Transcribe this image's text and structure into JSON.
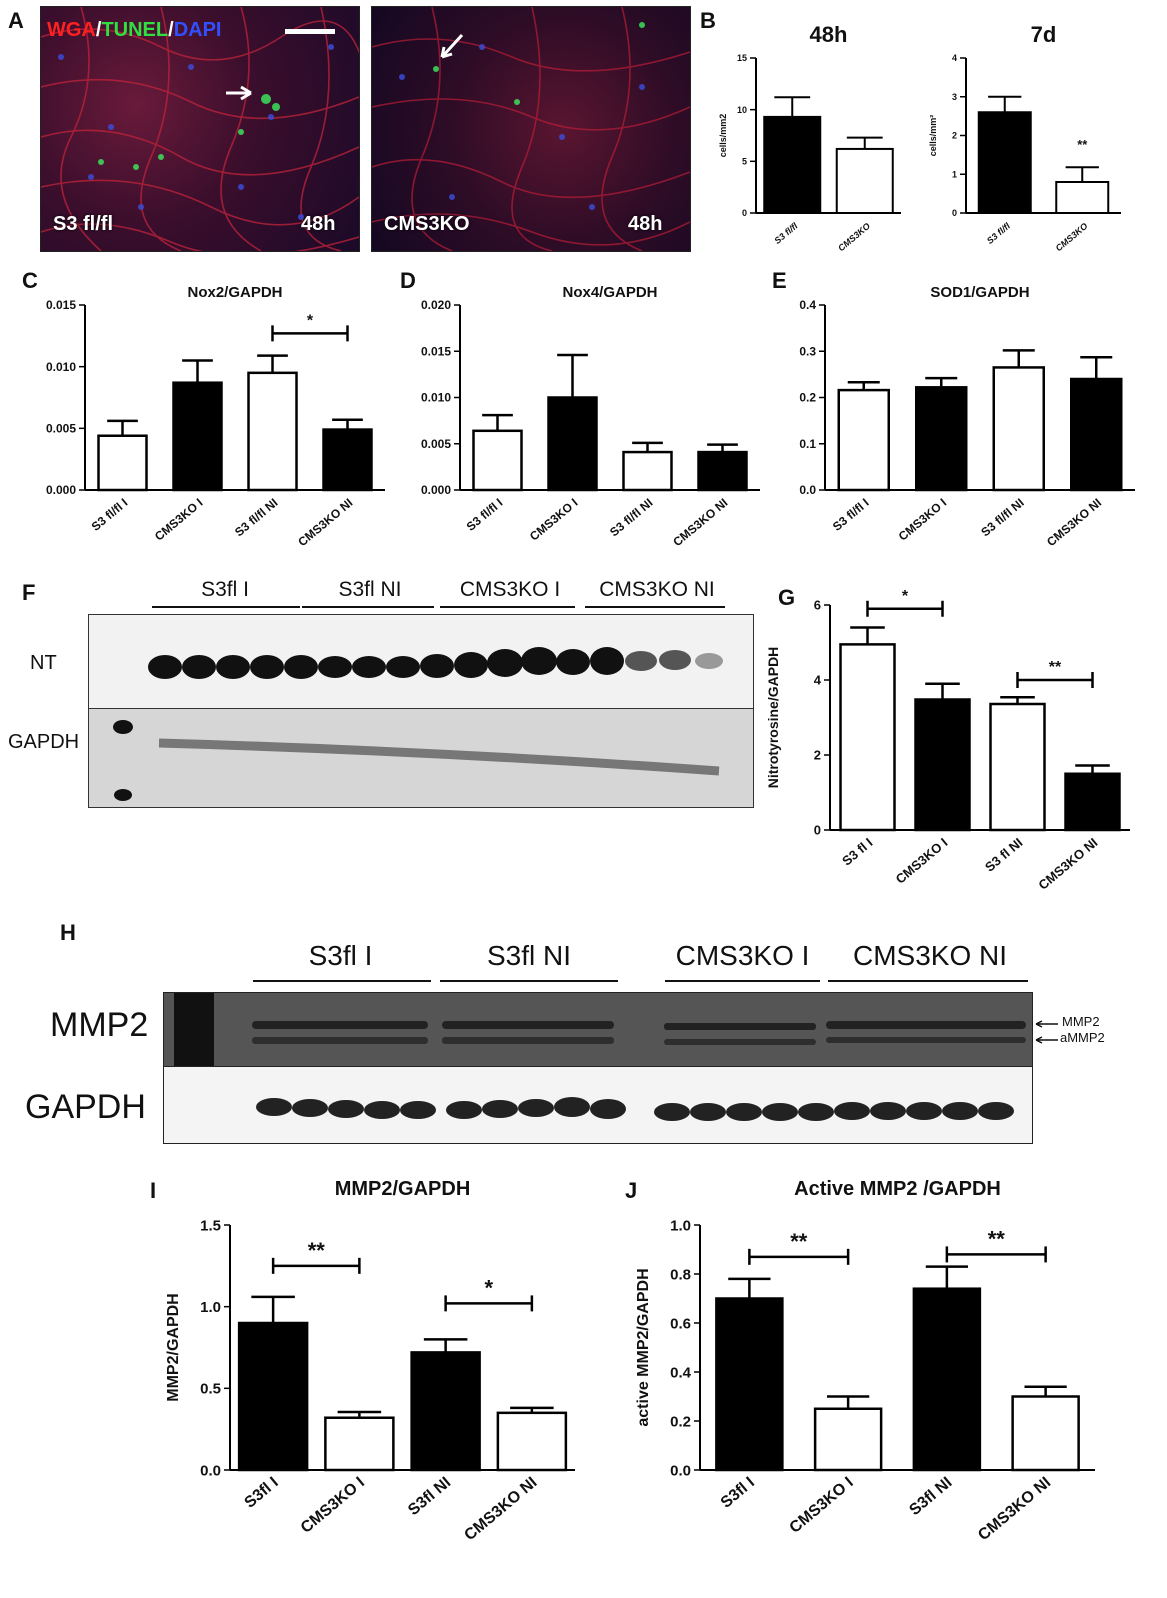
{
  "panels": {
    "a": {
      "letter": "A"
    },
    "b": {
      "letter": "B"
    },
    "c": {
      "letter": "C"
    },
    "d": {
      "letter": "D"
    },
    "e": {
      "letter": "E"
    },
    "f": {
      "letter": "F"
    },
    "g": {
      "letter": "G"
    },
    "h": {
      "letter": "H"
    },
    "i": {
      "letter": "I"
    },
    "j": {
      "letter": "J"
    }
  },
  "micrographs": {
    "stain_wga": "WGA",
    "stain_sep1": "/",
    "stain_tunel": "TUNEL",
    "stain_sep2": "/",
    "stain_dapi": "DAPI",
    "left_genotype": "S3 fl/fl",
    "left_time": "48h",
    "right_genotype": "CMS3KO",
    "right_time": "48h"
  },
  "blot_f": {
    "groups": [
      "S3fl I",
      "S3fl NI",
      "CMS3KO I",
      "CMS3KO NI"
    ],
    "rows": [
      "NT",
      "GAPDH"
    ]
  },
  "blot_h": {
    "groups": [
      "S3fl I",
      "S3fl NI",
      "CMS3KO I",
      "CMS3KO NI"
    ],
    "rows": [
      "MMP2",
      "GAPDH"
    ],
    "band_labels": [
      "MMP2",
      "aMMP2"
    ]
  },
  "colors": {
    "filled_bar": "#000000",
    "open_bar": "#ffffff",
    "stroke": "#000000"
  },
  "chart_data": [
    {
      "id": "b1",
      "type": "bar",
      "title": "48h",
      "ylabel": "cells/mm2",
      "categories": [
        "S3 fl/fl",
        "CMS3KO"
      ],
      "values": [
        9.3,
        6.2
      ],
      "errors": [
        1.9,
        1.1
      ],
      "fills": [
        "filled",
        "open"
      ],
      "ylim": [
        0,
        15
      ],
      "yticks": [
        "0",
        "5",
        "10",
        "15"
      ],
      "significance": [
        {
          "from": 1,
          "to": 1,
          "label": "",
          "y": 0
        }
      ]
    },
    {
      "id": "b2",
      "type": "bar",
      "title": "7d",
      "ylabel": "cells/mm²",
      "categories": [
        "S3 fl/fl",
        "CMS3KO"
      ],
      "values": [
        2.6,
        0.8
      ],
      "errors": [
        0.4,
        0.38
      ],
      "fills": [
        "filled",
        "open"
      ],
      "ylim": [
        0,
        4
      ],
      "yticks": [
        "0",
        "1",
        "2",
        "3",
        "4"
      ],
      "significance": [
        {
          "from": 1,
          "to": 1,
          "label": "**",
          "y": 1.45
        }
      ]
    },
    {
      "id": "c",
      "type": "bar",
      "title": "Nox2/GAPDH",
      "ylabel": "",
      "categories": [
        "S3 fl/fl I",
        "CMS3KO I",
        "S3 fl/fl NI",
        "CMS3KO NI"
      ],
      "values": [
        0.0044,
        0.0087,
        0.0095,
        0.0049
      ],
      "errors": [
        0.0012,
        0.0018,
        0.0014,
        0.0008
      ],
      "fills": [
        "open",
        "filled",
        "open",
        "filled"
      ],
      "ylim": [
        0,
        0.015
      ],
      "yticks": [
        "0.000",
        "0.005",
        "0.010",
        "0.015"
      ],
      "significance": [
        {
          "from": 2,
          "to": 3,
          "label": "*",
          "y": 0.0127
        }
      ]
    },
    {
      "id": "d",
      "type": "bar",
      "title": "Nox4/GAPDH",
      "ylabel": "",
      "categories": [
        "S3 fl/fl I",
        "CMS3KO I",
        "S3 fl/fl NI",
        "CMS3KO NI"
      ],
      "values": [
        0.0064,
        0.01,
        0.0041,
        0.0041
      ],
      "errors": [
        0.0017,
        0.0046,
        0.001,
        0.0008
      ],
      "fills": [
        "open",
        "filled",
        "open",
        "filled"
      ],
      "ylim": [
        0,
        0.02
      ],
      "yticks": [
        "0.000",
        "0.005",
        "0.010",
        "0.015",
        "0.020"
      ],
      "significance": []
    },
    {
      "id": "e",
      "type": "bar",
      "title": "SOD1/GAPDH",
      "ylabel": "",
      "categories": [
        "S3 fl/fl I",
        "CMS3KO I",
        "S3 fl/fl NI",
        "CMS3KO NI"
      ],
      "values": [
        0.216,
        0.222,
        0.265,
        0.24
      ],
      "errors": [
        0.017,
        0.02,
        0.037,
        0.047
      ],
      "fills": [
        "open",
        "filled",
        "open",
        "filled"
      ],
      "ylim": [
        0,
        0.4
      ],
      "yticks": [
        "0.0",
        "0.1",
        "0.2",
        "0.3",
        "0.4"
      ],
      "significance": []
    },
    {
      "id": "g",
      "type": "bar",
      "title": "",
      "ylabel": "Nitrotyrosine/GAPDH",
      "categories": [
        "S3 fl I",
        "CMS3KO I",
        "S3 fl NI",
        "CMS3KO NI"
      ],
      "values": [
        4.95,
        3.48,
        3.36,
        1.5
      ],
      "errors": [
        0.45,
        0.42,
        0.18,
        0.22
      ],
      "fills": [
        "open",
        "filled",
        "open",
        "filled"
      ],
      "ylim": [
        0,
        6
      ],
      "yticks": [
        "0",
        "2",
        "4",
        "6"
      ],
      "significance": [
        {
          "from": 0,
          "to": 1,
          "label": "*",
          "y": 5.9
        },
        {
          "from": 2,
          "to": 3,
          "label": "**",
          "y": 4.0
        }
      ]
    },
    {
      "id": "i",
      "type": "bar",
      "title": "MMP2/GAPDH",
      "ylabel": "MMP2/GAPDH",
      "categories": [
        "S3fl I",
        "CMS3KO I",
        "S3fl NI",
        "CMS3KO NI"
      ],
      "values": [
        0.9,
        0.32,
        0.72,
        0.35
      ],
      "errors": [
        0.16,
        0.035,
        0.08,
        0.03
      ],
      "fills": [
        "filled",
        "open",
        "filled",
        "open"
      ],
      "ylim": [
        0,
        1.5
      ],
      "yticks": [
        "0.0",
        "0.5",
        "1.0",
        "1.5"
      ],
      "significance": [
        {
          "from": 0,
          "to": 1,
          "label": "**",
          "y": 1.25
        },
        {
          "from": 2,
          "to": 3,
          "label": "*",
          "y": 1.02
        }
      ]
    },
    {
      "id": "j",
      "type": "bar",
      "title": "Active MMP2 /GAPDH",
      "ylabel": "active MMP2/GAPDH",
      "categories": [
        "S3fl I",
        "CMS3KO I",
        "S3fl NI",
        "CMS3KO NI"
      ],
      "values": [
        0.7,
        0.25,
        0.74,
        0.3
      ],
      "errors": [
        0.08,
        0.05,
        0.09,
        0.04
      ],
      "fills": [
        "filled",
        "open",
        "filled",
        "open"
      ],
      "ylim": [
        0,
        1.0
      ],
      "yticks": [
        "0.0",
        "0.2",
        "0.4",
        "0.6",
        "0.8",
        "1.0"
      ],
      "significance": [
        {
          "from": 0,
          "to": 1,
          "label": "**",
          "y": 0.87
        },
        {
          "from": 2,
          "to": 3,
          "label": "**",
          "y": 0.88
        }
      ]
    }
  ]
}
